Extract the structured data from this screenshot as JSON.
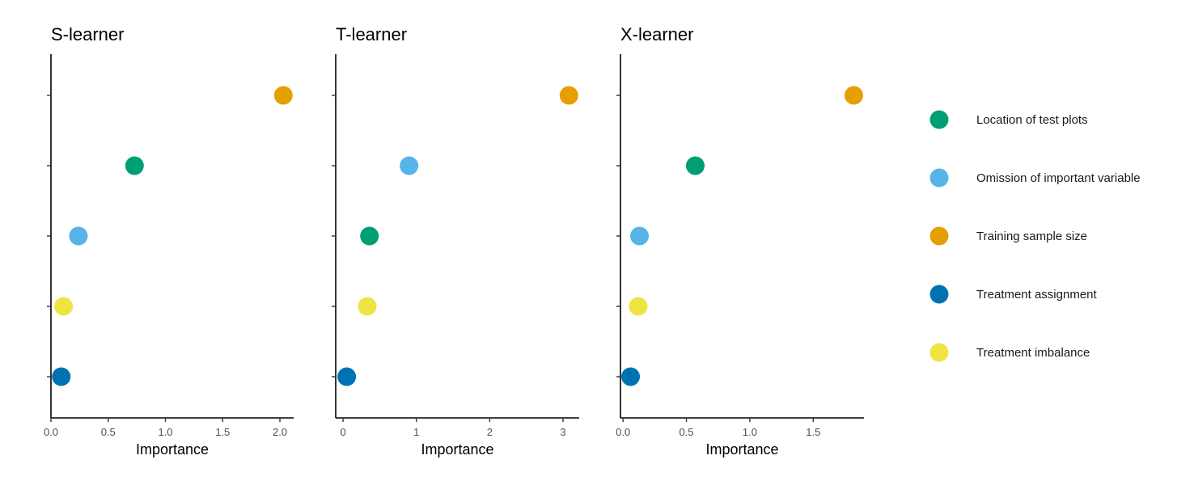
{
  "chart_data": {
    "type": "scatter",
    "xlabel": "Importance",
    "legend": {
      "placement": "right",
      "items": [
        {
          "name": "Location of test plots",
          "color": "#009E73"
        },
        {
          "name": "Omission of important variable",
          "color": "#56B4E9"
        },
        {
          "name": "Training sample size",
          "color": "#E69F00"
        },
        {
          "name": "Treatment assignment",
          "color": "#0072B2"
        },
        {
          "name": "Treatment imbalance",
          "color": "#F0E442"
        }
      ]
    },
    "panels": [
      {
        "title": "S-learner",
        "xlim": [
          0,
          2.12
        ],
        "xticks": [
          0,
          0.5,
          1,
          1.5,
          2
        ],
        "xtick_labels": [
          "0.0",
          "0.5",
          "1.0",
          "1.5",
          "2.0"
        ],
        "points": [
          {
            "series": "Training sample size",
            "rank": 1,
            "x": 2.03
          },
          {
            "series": "Location of test plots",
            "rank": 2,
            "x": 0.73
          },
          {
            "series": "Omission of important variable",
            "rank": 3,
            "x": 0.24
          },
          {
            "series": "Treatment imbalance",
            "rank": 4,
            "x": 0.11
          },
          {
            "series": "Treatment assignment",
            "rank": 5,
            "x": 0.09
          }
        ]
      },
      {
        "title": "T-learner",
        "xlim": [
          -0.1,
          3.22
        ],
        "xticks": [
          0,
          1,
          2,
          3
        ],
        "xtick_labels": [
          "0",
          "1",
          "2",
          "3"
        ],
        "points": [
          {
            "series": "Training sample size",
            "rank": 1,
            "x": 3.08
          },
          {
            "series": "Omission of important variable",
            "rank": 2,
            "x": 0.9
          },
          {
            "series": "Location of test plots",
            "rank": 3,
            "x": 0.36
          },
          {
            "series": "Treatment imbalance",
            "rank": 4,
            "x": 0.33
          },
          {
            "series": "Treatment assignment",
            "rank": 5,
            "x": 0.05
          }
        ]
      },
      {
        "title": "X-learner",
        "xlim": [
          -0.02,
          1.9
        ],
        "xticks": [
          0,
          0.5,
          1,
          1.5
        ],
        "xtick_labels": [
          "0.0",
          "0.5",
          "1.0",
          "1.5"
        ],
        "points": [
          {
            "series": "Training sample size",
            "rank": 1,
            "x": 1.82
          },
          {
            "series": "Location of test plots",
            "rank": 2,
            "x": 0.57
          },
          {
            "series": "Omission of important variable",
            "rank": 3,
            "x": 0.13
          },
          {
            "series": "Treatment imbalance",
            "rank": 4,
            "x": 0.12
          },
          {
            "series": "Treatment assignment",
            "rank": 5,
            "x": 0.06
          }
        ]
      }
    ]
  }
}
